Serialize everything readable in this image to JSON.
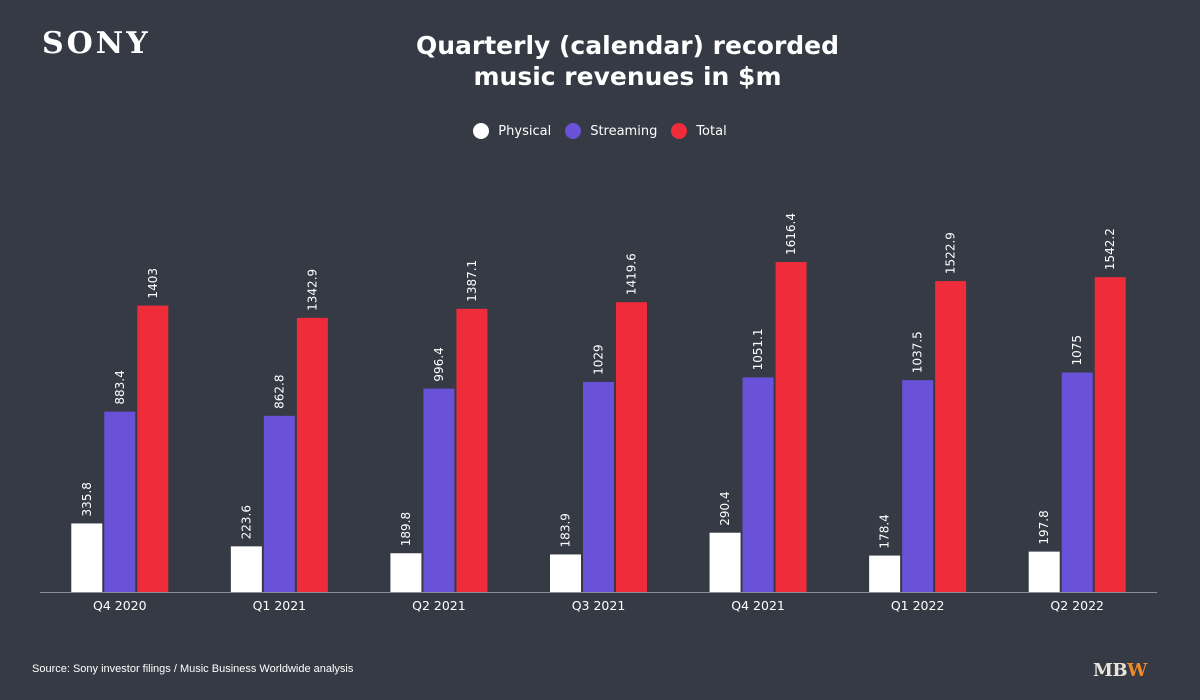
{
  "brand": {
    "logo_text": "SONY"
  },
  "title_lines": [
    "Quarterly (calendar) recorded",
    "music revenues in $m"
  ],
  "source_text": "Source: Sony investor filings / Music Business Worldwide analysis",
  "footer_logo": {
    "main": "MB",
    "accent": "W"
  },
  "colors": {
    "background": "#353a44",
    "physical": "#ffffff",
    "streaming": "#6a52d8",
    "total": "#ee2c3a",
    "mbw_accent": "#f08a24"
  },
  "chart_data": {
    "type": "bar",
    "categories": [
      "Q4 2020",
      "Q1 2021",
      "Q2 2021",
      "Q3 2021",
      "Q4 2021",
      "Q1 2022",
      "Q2 2022"
    ],
    "series": [
      {
        "name": "Physical",
        "color": "#ffffff",
        "values": [
          335.8,
          223.6,
          189.8,
          183.9,
          290.4,
          178.4,
          197.8
        ]
      },
      {
        "name": "Streaming",
        "color": "#6a52d8",
        "values": [
          883.4,
          862.8,
          996.4,
          1029,
          1051.1,
          1037.5,
          1075
        ]
      },
      {
        "name": "Total",
        "color": "#ee2c3a",
        "values": [
          1403,
          1342.9,
          1387.1,
          1419.6,
          1616.4,
          1522.9,
          1542.2
        ]
      }
    ],
    "ylim": [
      0,
      1616.4
    ],
    "grid": false,
    "legend_position": "top-center"
  }
}
